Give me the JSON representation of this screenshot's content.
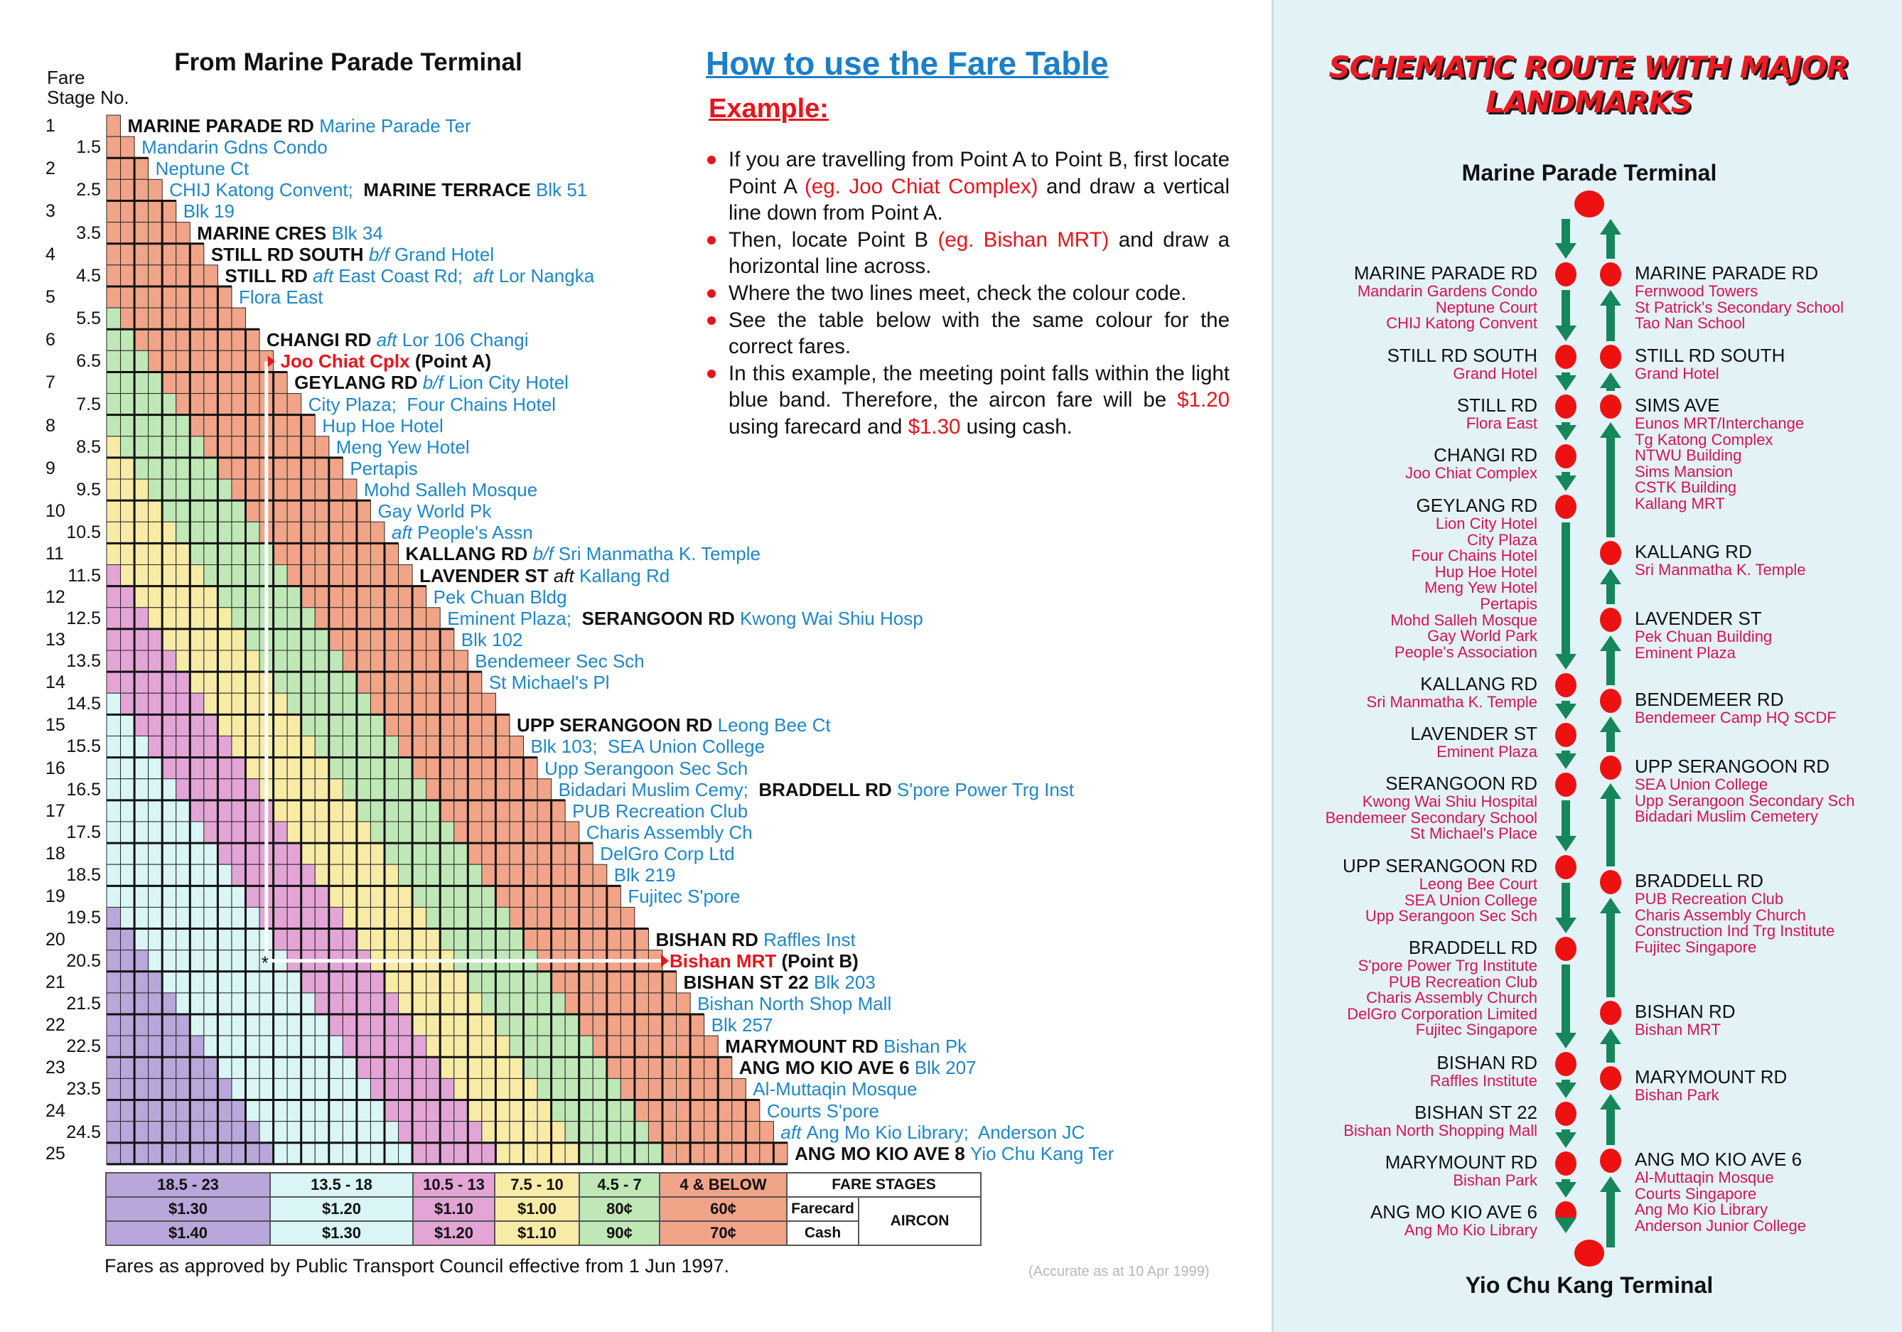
{
  "fare_table": {
    "title": "From Marine Parade Terminal",
    "stage_header": [
      "Fare",
      "Stage No."
    ],
    "stages": [
      {
        "no": "1",
        "label": [
          [
            "road",
            "MARINE PARADE RD "
          ],
          [
            "place",
            "Marine Parade Ter"
          ]
        ]
      },
      {
        "no": "1.5",
        "label": [
          [
            "place",
            "Mandarin Gdns Condo"
          ]
        ]
      },
      {
        "no": "2",
        "label": [
          [
            "place",
            "Neptune Ct"
          ]
        ]
      },
      {
        "no": "2.5",
        "label": [
          [
            "place",
            "CHIJ Katong Convent;  "
          ],
          [
            "road",
            "MARINE TERRACE "
          ],
          [
            "place",
            "Blk 51"
          ]
        ]
      },
      {
        "no": "3",
        "label": [
          [
            "place",
            "Blk 19"
          ]
        ]
      },
      {
        "no": "3.5",
        "label": [
          [
            "road",
            "MARINE CRES "
          ],
          [
            "place",
            "Blk 34"
          ]
        ]
      },
      {
        "no": "4",
        "label": [
          [
            "road",
            "STILL RD SOUTH "
          ],
          [
            "pre",
            "b/f "
          ],
          [
            "place",
            "Grand Hotel"
          ]
        ]
      },
      {
        "no": "4.5",
        "label": [
          [
            "road",
            "STILL RD "
          ],
          [
            "pre",
            "aft "
          ],
          [
            "place",
            "East Coast Rd;  "
          ],
          [
            "pre",
            "aft "
          ],
          [
            "place",
            "Lor Nangka"
          ]
        ]
      },
      {
        "no": "5",
        "label": [
          [
            "place",
            "Flora East"
          ]
        ]
      },
      {
        "no": "5.5",
        "label": []
      },
      {
        "no": "6",
        "label": [
          [
            "road",
            "CHANGI RD "
          ],
          [
            "pre",
            "aft "
          ],
          [
            "place",
            "Lor 106 Changi"
          ]
        ]
      },
      {
        "no": "6.5",
        "label": [
          [
            "red",
            "Joo Chiat Cplx "
          ],
          [
            "black",
            "(Point A)"
          ]
        ]
      },
      {
        "no": "7",
        "label": [
          [
            "road",
            "GEYLANG RD "
          ],
          [
            "pre",
            "b/f "
          ],
          [
            "place",
            "Lion City Hotel"
          ]
        ]
      },
      {
        "no": "7.5",
        "label": [
          [
            "place",
            "City Plaza;  Four Chains Hotel"
          ]
        ]
      },
      {
        "no": "8",
        "label": [
          [
            "place",
            "Hup Hoe Hotel"
          ]
        ]
      },
      {
        "no": "8.5",
        "label": [
          [
            "place",
            "Meng Yew Hotel"
          ]
        ]
      },
      {
        "no": "9",
        "label": [
          [
            "place",
            "Pertapis"
          ]
        ]
      },
      {
        "no": "9.5",
        "label": [
          [
            "place",
            "Mohd Salleh Mosque"
          ]
        ]
      },
      {
        "no": "10",
        "label": [
          [
            "place",
            "Gay World Pk"
          ]
        ]
      },
      {
        "no": "10.5",
        "label": [
          [
            "pre",
            "aft "
          ],
          [
            "place",
            "People's Assn"
          ]
        ]
      },
      {
        "no": "11",
        "label": [
          [
            "road",
            "KALLANG RD "
          ],
          [
            "pre",
            "b/f "
          ],
          [
            "place",
            "Sri Manmatha K. Temple"
          ]
        ]
      },
      {
        "no": "11.5",
        "label": [
          [
            "road",
            "LAVENDER ST "
          ],
          [
            "preblack",
            "aft "
          ],
          [
            "place",
            "Kallang Rd"
          ]
        ]
      },
      {
        "no": "12",
        "label": [
          [
            "place",
            "Pek Chuan Bldg"
          ]
        ]
      },
      {
        "no": "12.5",
        "label": [
          [
            "place",
            "Eminent Plaza;  "
          ],
          [
            "road",
            "SERANGOON RD "
          ],
          [
            "place",
            "Kwong Wai Shiu Hosp"
          ]
        ]
      },
      {
        "no": "13",
        "label": [
          [
            "place",
            "Blk 102"
          ]
        ]
      },
      {
        "no": "13.5",
        "label": [
          [
            "place",
            "Bendemeer Sec Sch"
          ]
        ]
      },
      {
        "no": "14",
        "label": [
          [
            "place",
            "St Michael's Pl"
          ]
        ]
      },
      {
        "no": "14.5",
        "label": []
      },
      {
        "no": "15",
        "label": [
          [
            "road",
            "UPP SERANGOON RD "
          ],
          [
            "place",
            "Leong Bee Ct"
          ]
        ]
      },
      {
        "no": "15.5",
        "label": [
          [
            "place",
            "Blk 103;  SEA Union College"
          ]
        ]
      },
      {
        "no": "16",
        "label": [
          [
            "place",
            "Upp Serangoon Sec Sch"
          ]
        ]
      },
      {
        "no": "16.5",
        "label": [
          [
            "place",
            "Bidadari Muslim Cemy;  "
          ],
          [
            "road",
            "BRADDELL RD "
          ],
          [
            "place",
            "S'pore Power Trg Inst"
          ]
        ]
      },
      {
        "no": "17",
        "label": [
          [
            "place",
            "PUB Recreation Club"
          ]
        ]
      },
      {
        "no": "17.5",
        "label": [
          [
            "place",
            "Charis Assembly Ch"
          ]
        ]
      },
      {
        "no": "18",
        "label": [
          [
            "place",
            "DelGro Corp Ltd"
          ]
        ]
      },
      {
        "no": "18.5",
        "label": [
          [
            "place",
            "Blk 219"
          ]
        ]
      },
      {
        "no": "19",
        "label": [
          [
            "place",
            "Fujitec S'pore"
          ]
        ]
      },
      {
        "no": "19.5",
        "label": []
      },
      {
        "no": "20",
        "label": [
          [
            "road",
            "BISHAN RD "
          ],
          [
            "place",
            "Raffles Inst"
          ]
        ]
      },
      {
        "no": "20.5",
        "label": [
          [
            "red",
            "Bishan MRT "
          ],
          [
            "black",
            "(Point B)"
          ]
        ]
      },
      {
        "no": "21",
        "label": [
          [
            "road",
            "BISHAN ST 22 "
          ],
          [
            "place",
            "Blk 203"
          ]
        ]
      },
      {
        "no": "21.5",
        "label": [
          [
            "place",
            "Bishan North Shop Mall"
          ]
        ]
      },
      {
        "no": "22",
        "label": [
          [
            "place",
            "Blk 257"
          ]
        ]
      },
      {
        "no": "22.5",
        "label": [
          [
            "road",
            "MARYMOUNT RD "
          ],
          [
            "place",
            "Bishan Pk"
          ]
        ]
      },
      {
        "no": "23",
        "label": [
          [
            "road",
            "ANG MO KIO AVE 6 "
          ],
          [
            "place",
            "Blk 207"
          ]
        ]
      },
      {
        "no": "23.5",
        "label": [
          [
            "place",
            "Al-Muttaqin Mosque"
          ]
        ]
      },
      {
        "no": "24",
        "label": [
          [
            "place",
            "Courts S'pore"
          ]
        ]
      },
      {
        "no": "24.5",
        "label": [
          [
            "pre",
            "aft "
          ],
          [
            "place",
            "Ang Mo Kio Library;  Anderson JC"
          ]
        ]
      },
      {
        "no": "25",
        "label": [
          [
            "road",
            "ANG MO KIO AVE 8 "
          ],
          [
            "place",
            "Yio Chu Kang Ter"
          ]
        ]
      }
    ],
    "example": {
      "point_a_stage": 6.5,
      "point_b_stage": 20.5,
      "marker": "*"
    }
  },
  "legend": {
    "bands": [
      {
        "range": "18.5 - 23",
        "min": 18.5,
        "farecard": "$1.30",
        "cash": "$1.40",
        "color": "#b9a6da"
      },
      {
        "range": "13.5 - 18",
        "min": 13.5,
        "farecard": "$1.20",
        "cash": "$1.30",
        "color": "#d9f5f6"
      },
      {
        "range": "10.5 - 13",
        "min": 10.5,
        "farecard": "$1.10",
        "cash": "$1.20",
        "color": "#e3a5d6"
      },
      {
        "range": "7.5 - 10",
        "min": 7.5,
        "farecard": "$1.00",
        "cash": "$1.10",
        "color": "#f8eba6"
      },
      {
        "range": "4.5 - 7",
        "min": 4.5,
        "farecard": "80¢",
        "cash": "90¢",
        "color": "#bfe8b6"
      },
      {
        "range": "4 & BELOW",
        "min": 0,
        "farecard": "60¢",
        "cash": "70¢",
        "color": "#f1a488"
      }
    ],
    "fare_stages_label": "FARE STAGES",
    "farecard_label": "Farecard",
    "cash_label": "Cash",
    "aircon_label": "AIRCON"
  },
  "footer": {
    "note": "Fares as approved by Public Transport Council effective from 1 Jun 1997.",
    "accurate": "(Accurate as at 10 Apr 1999)"
  },
  "instructions": {
    "title": "How to use the Fare Table",
    "example_label": "Example:",
    "bullets": [
      [
        [
          "t",
          "If you are travelling from Point A to Point B, first locate Point A "
        ],
        [
          "r",
          "(eg. Joo Chiat Complex)"
        ],
        [
          "t",
          " and draw a vertical line down from Point A."
        ]
      ],
      [
        [
          "t",
          "Then, locate Point B "
        ],
        [
          "r",
          "(eg. Bishan MRT)"
        ],
        [
          "t",
          " and draw a horizontal line across."
        ]
      ],
      [
        [
          "t",
          "Where the two lines meet, check the colour code."
        ]
      ],
      [
        [
          "t",
          "See the table below with the same colour for the correct fares."
        ]
      ],
      [
        [
          "t",
          "In this example, the meeting point falls within the light blue band.  Therefore, the aircon fare will be "
        ],
        [
          "r",
          "$1.20"
        ],
        [
          "t",
          " using farecard and "
        ],
        [
          "r",
          "$1.30"
        ],
        [
          "t",
          " using cash."
        ]
      ]
    ]
  },
  "schematic": {
    "title_line1": "SCHEMATIC ROUTE WITH MAJOR",
    "title_line2": "LANDMARKS",
    "start_terminal": "Marine Parade Terminal",
    "end_terminal": "Yio Chu Kang Terminal",
    "dot_color": "#ee1111",
    "arrow_color": "#15875a",
    "outbound": [
      {
        "name": "MARINE PARADE RD",
        "landmarks": [
          "Mandarin Gardens Condo",
          "Neptune Court",
          "CHIJ Katong Convent"
        ]
      },
      {
        "name": "STILL RD SOUTH",
        "landmarks": [
          "Grand Hotel"
        ]
      },
      {
        "name": "STILL RD",
        "landmarks": [
          "Flora East"
        ]
      },
      {
        "name": "CHANGI RD",
        "landmarks": [
          "Joo Chiat Complex"
        ]
      },
      {
        "name": "GEYLANG RD",
        "landmarks": [
          "Lion City Hotel",
          "City Plaza",
          "Four Chains Hotel",
          "Hup Hoe Hotel",
          "Meng Yew Hotel",
          "Pertapis",
          "Mohd Salleh Mosque",
          "Gay World Park",
          "People's Association"
        ]
      },
      {
        "name": "KALLANG RD",
        "landmarks": [
          "Sri Manmatha K. Temple"
        ]
      },
      {
        "name": "LAVENDER ST",
        "landmarks": [
          "Eminent Plaza"
        ]
      },
      {
        "name": "SERANGOON RD",
        "landmarks": [
          "Kwong Wai Shiu Hospital",
          "Bendemeer Secondary School",
          "St Michael's Place"
        ]
      },
      {
        "name": "UPP SERANGOON RD",
        "landmarks": [
          "Leong Bee Court",
          "SEA Union College",
          "Upp Serangoon Sec Sch"
        ]
      },
      {
        "name": "BRADDELL RD",
        "landmarks": [
          "S'pore Power Trg Institute",
          "PUB Recreation Club",
          "Charis Assembly Church",
          "DelGro Corporation Limited",
          "Fujitec Singapore"
        ]
      },
      {
        "name": "BISHAN RD",
        "landmarks": [
          "Raffles Institute"
        ]
      },
      {
        "name": "BISHAN ST 22",
        "landmarks": [
          "Bishan North Shopping Mall"
        ]
      },
      {
        "name": "MARYMOUNT RD",
        "landmarks": [
          "Bishan Park"
        ]
      },
      {
        "name": "ANG MO KIO AVE 6",
        "landmarks": [
          "Ang Mo Kio Library"
        ]
      }
    ],
    "inbound": [
      {
        "name": "MARINE PARADE RD",
        "landmarks": [
          "Fernwood Towers",
          "St Patrick's Secondary School",
          "Tao Nan School"
        ]
      },
      {
        "name": "STILL RD SOUTH",
        "landmarks": [
          "Grand Hotel"
        ]
      },
      {
        "name": "SIMS AVE",
        "landmarks": [
          "Eunos MRT/Interchange",
          "Tg Katong Complex",
          "NTWU Building",
          "Sims Mansion",
          "CSTK Building",
          "Kallang MRT"
        ]
      },
      {
        "name": "KALLANG RD",
        "landmarks": [
          "Sri Manmatha K. Temple"
        ]
      },
      {
        "name": "LAVENDER ST",
        "landmarks": [
          "Pek Chuan Building",
          "Eminent Plaza"
        ]
      },
      {
        "name": "BENDEMEER RD",
        "landmarks": [
          "Bendemeer Camp HQ SCDF"
        ]
      },
      {
        "name": "UPP SERANGOON RD",
        "landmarks": [
          "SEA Union College",
          "Upp Serangoon Secondary Sch",
          "Bidadari Muslim Cemetery"
        ]
      },
      {
        "name": "BRADDELL RD",
        "landmarks": [
          "PUB Recreation Club",
          "Charis Assembly Church",
          "Construction Ind Trg Institute",
          "Fujitec Singapore"
        ]
      },
      {
        "name": "BISHAN RD",
        "landmarks": [
          "Bishan MRT"
        ]
      },
      {
        "name": "MARYMOUNT RD",
        "landmarks": [
          "Bishan Park"
        ]
      },
      {
        "name": "ANG MO KIO AVE 6",
        "landmarks": [
          "Al-Muttaqin Mosque",
          "Courts Singapore",
          "Ang Mo Kio Library",
          "Anderson Junior College"
        ]
      }
    ]
  }
}
